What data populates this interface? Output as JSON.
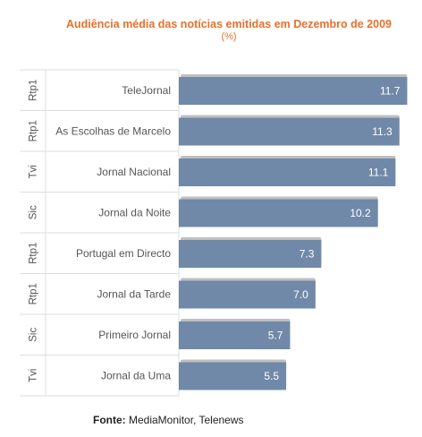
{
  "chart_data": {
    "type": "bar",
    "orientation": "horizontal",
    "title": "Audiência média das notícias emitidas em Dezembro de 2009",
    "subtitle": "(%)",
    "categories": [
      "TeleJornal",
      "As Escolhas de Marcelo",
      "Jornal Nacional",
      "Jornal da Noite",
      "Portugal em Directo",
      "Jornal da Tarde",
      "Primeiro Jornal",
      "Jornal da Uma"
    ],
    "channels": [
      "Rtp1",
      "Rtp1",
      "Tvi",
      "Sic",
      "Rtp1",
      "Rtp1",
      "Sic",
      "Tvi"
    ],
    "values": [
      11.7,
      11.3,
      11.1,
      10.2,
      7.3,
      7.0,
      5.7,
      5.5
    ],
    "value_labels": [
      "11.7",
      "11.3",
      "11.1",
      "10.2",
      "7.3",
      "7.0",
      "5.7",
      "5.5"
    ],
    "xlim": [
      0,
      12
    ],
    "bar_color": "#7189a8",
    "grid": false
  },
  "colors": {
    "title": "#e8702a",
    "bar": "#7189a8",
    "shadow": "#bfbfbf",
    "divider": "#dddddd",
    "label_text": "#555555"
  },
  "source": {
    "label": "Fonte:",
    "text": "MediaMonitor, Telenews"
  }
}
